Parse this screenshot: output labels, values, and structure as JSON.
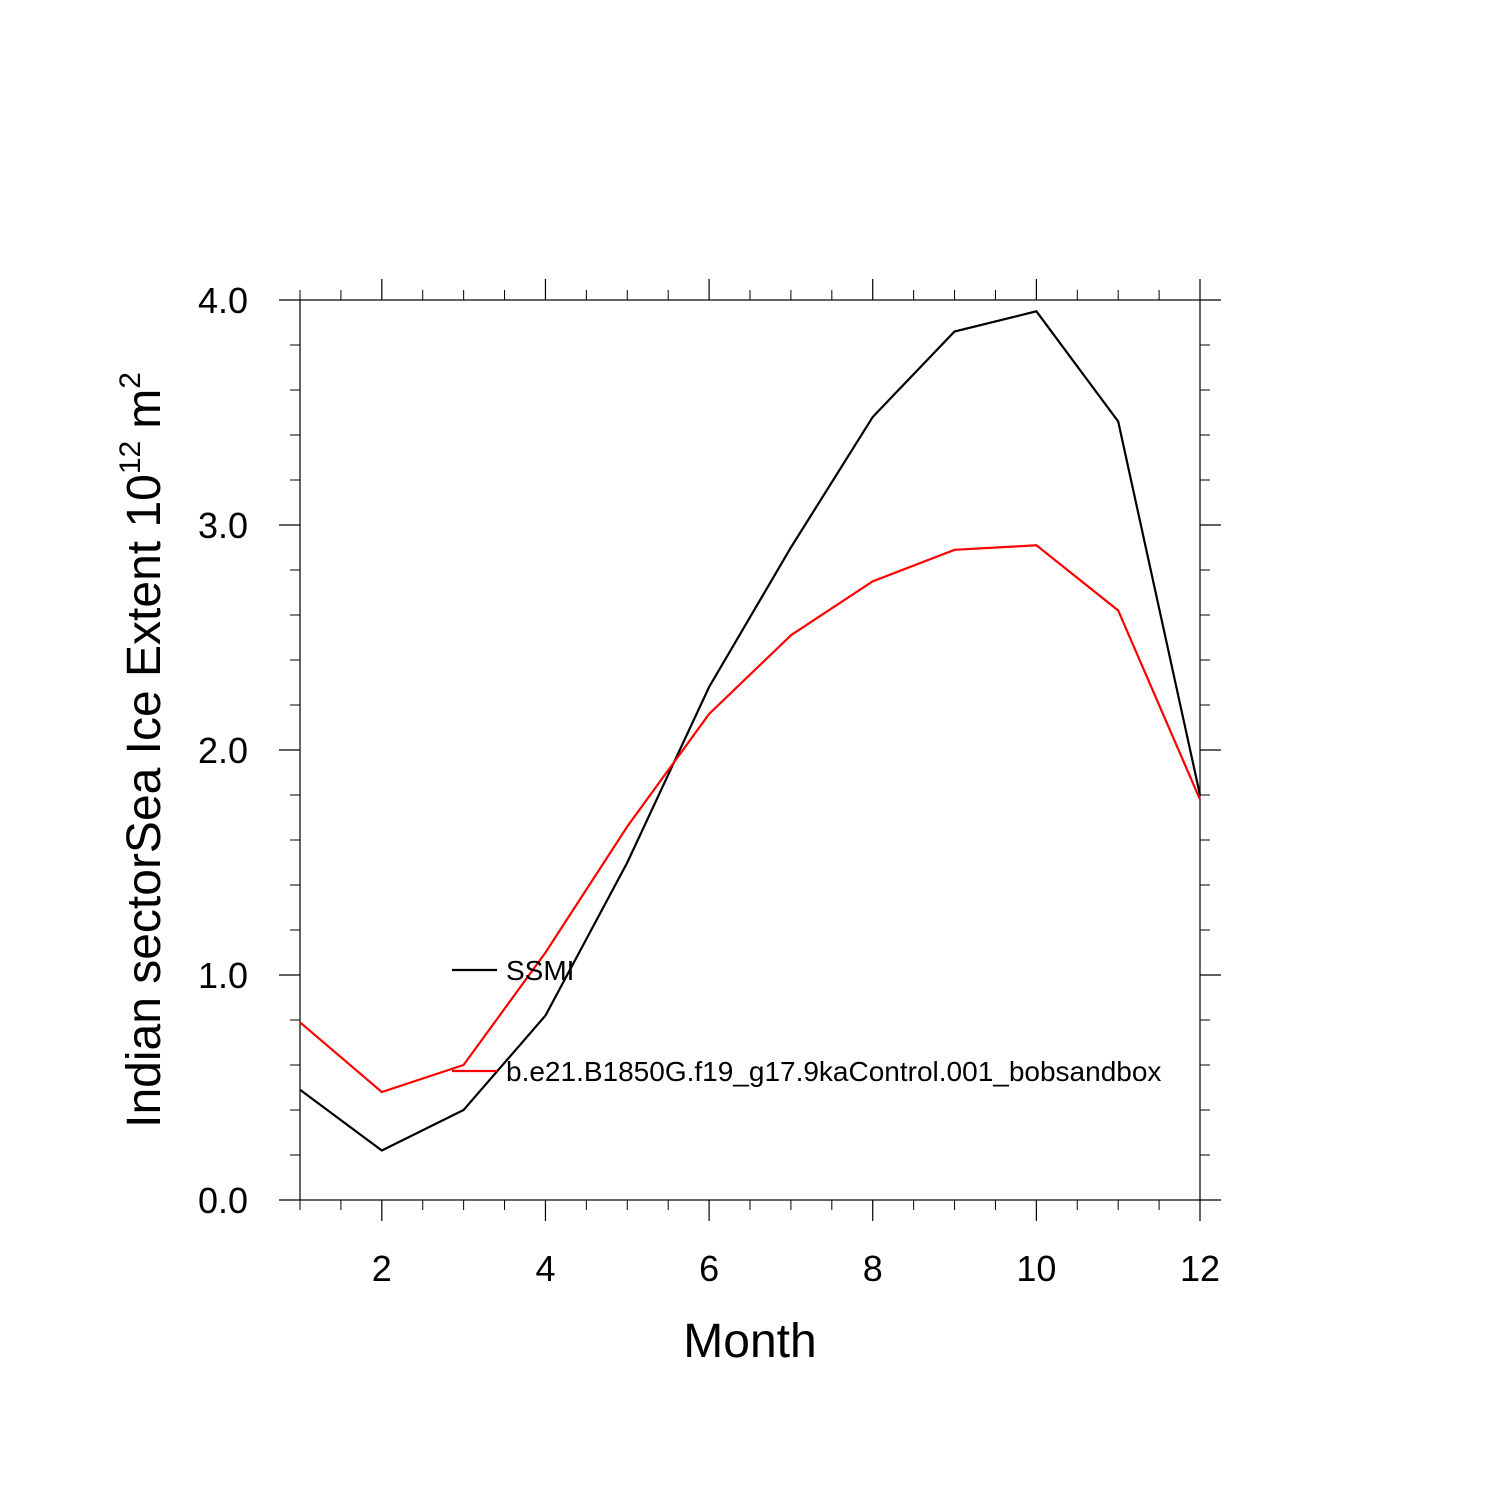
{
  "chart_data": {
    "type": "line",
    "title": "",
    "xlabel": "Month",
    "ylabel_main": "Indian sectorSea Ice Extent 10",
    "ylabel_exponent": "12",
    "ylabel_unit": "m",
    "ylabel_unit_exponent": "2",
    "xlim": [
      1,
      12
    ],
    "ylim": [
      0,
      4
    ],
    "x_ticks": [
      2,
      4,
      6,
      8,
      10,
      12
    ],
    "x_tick_labels": [
      "2",
      "4",
      "6",
      "8",
      "10",
      "12"
    ],
    "y_ticks": [
      0,
      1,
      2,
      3,
      4
    ],
    "y_tick_labels": [
      "0.0",
      "1.0",
      "2.0",
      "3.0",
      "4.0"
    ],
    "x": [
      1,
      2,
      3,
      4,
      5,
      6,
      7,
      8,
      9,
      10,
      11,
      12
    ],
    "series": [
      {
        "name": "SSMI",
        "color": "#000000",
        "values": [
          0.49,
          0.22,
          0.4,
          0.82,
          1.5,
          2.28,
          2.9,
          3.48,
          3.86,
          3.95,
          3.46,
          1.8
        ]
      },
      {
        "name": "b.e21.B1850G.f19_g17.9kaControl.001_bobsandbox",
        "color": "#ff0000",
        "values": [
          0.79,
          0.48,
          0.6,
          1.1,
          1.66,
          2.16,
          2.51,
          2.75,
          2.89,
          2.91,
          2.62,
          1.78
        ]
      }
    ],
    "legend_position": "center-left",
    "grid": false
  }
}
